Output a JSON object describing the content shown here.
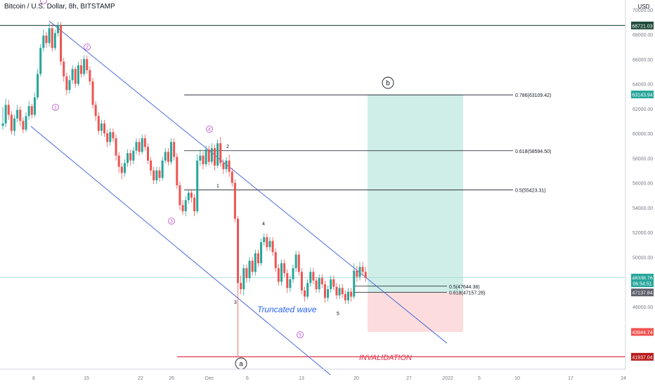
{
  "header": {
    "title": "Bitcoin / U.S. Dollar, 8h, BITSTAMP"
  },
  "price_axis": {
    "currency": "USD",
    "ticks": [
      "70000.00",
      "68000.00",
      "66000.00",
      "64000.00",
      "62000.00",
      "60000.00",
      "58000.00",
      "56000.00",
      "54000.00",
      "52000.00",
      "50000.00",
      "48000.00",
      "46000.00",
      "44000.00"
    ]
  },
  "time_axis": {
    "ticks": [
      "8",
      "15",
      "22",
      "26",
      "Dec",
      "6",
      "13",
      "20",
      "27",
      "2022",
      "5",
      "10",
      "17",
      "24"
    ]
  },
  "colors": {
    "up": "#26a69a",
    "down": "#ef5350",
    "channel": "#3a5bd9",
    "target_zone": "#cfeee7",
    "stop_zone": "#fcdcdc",
    "invalidation": "#e0364a",
    "wave_label": "#b64fc8",
    "dark_line": "#1e4a3a"
  },
  "chart_data": {
    "type": "candlestick",
    "symbol": "Bitcoin / U.S. Dollar",
    "interval": "8h",
    "exchange": "BITSTAMP",
    "ylim": [
      43000,
      70500
    ],
    "candles": [
      [
        60600,
        60800,
        62100,
        60300
      ],
      [
        60800,
        62300,
        62800,
        60500
      ],
      [
        62300,
        61500,
        62700,
        61100
      ],
      [
        61500,
        60200,
        61800,
        59900
      ],
      [
        60200,
        61200,
        61500,
        59800
      ],
      [
        61200,
        61900,
        62300,
        60900
      ],
      [
        61900,
        61000,
        62200,
        60600
      ],
      [
        61000,
        60300,
        61300,
        60000
      ],
      [
        60300,
        61400,
        61700,
        60100
      ],
      [
        61400,
        62200,
        62600,
        61100
      ],
      [
        62200,
        61500,
        62400,
        61200
      ],
      [
        61500,
        62900,
        63300,
        61300
      ],
      [
        62900,
        64800,
        65200,
        62700
      ],
      [
        64800,
        66900,
        67200,
        64600
      ],
      [
        66900,
        67900,
        68400,
        66600
      ],
      [
        67900,
        67300,
        68200,
        66900
      ],
      [
        67300,
        68500,
        68900,
        67000
      ],
      [
        68500,
        66900,
        68800,
        66600
      ],
      [
        66900,
        68100,
        68400,
        66700
      ],
      [
        68100,
        68700,
        69000,
        67800
      ],
      [
        68700,
        65800,
        69000,
        65500
      ],
      [
        65800,
        64600,
        66100,
        64200
      ],
      [
        64600,
        63500,
        64900,
        63100
      ],
      [
        63500,
        64300,
        64700,
        63200
      ],
      [
        64300,
        65200,
        65500,
        64000
      ],
      [
        65200,
        64000,
        65400,
        63700
      ],
      [
        64000,
        65500,
        65800,
        63800
      ],
      [
        65500,
        64800,
        66000,
        64500
      ],
      [
        64800,
        66000,
        66300,
        64600
      ],
      [
        66000,
        65100,
        66300,
        64800
      ],
      [
        65100,
        64200,
        65400,
        63900
      ],
      [
        64200,
        62300,
        64500,
        62000
      ],
      [
        62300,
        61400,
        62600,
        61000
      ],
      [
        61400,
        60200,
        61700,
        59900
      ],
      [
        60200,
        60800,
        61100,
        59800
      ],
      [
        60800,
        60000,
        61100,
        59700
      ],
      [
        60000,
        59300,
        60300,
        58900
      ],
      [
        59300,
        60100,
        60400,
        59000
      ],
      [
        60100,
        59600,
        60400,
        59300
      ],
      [
        59600,
        58200,
        59900,
        57800
      ],
      [
        58200,
        57300,
        58500,
        56800
      ],
      [
        57300,
        56800,
        57600,
        56300
      ],
      [
        56800,
        57600,
        57900,
        56500
      ],
      [
        57600,
        58400,
        58700,
        57300
      ],
      [
        58400,
        57800,
        58700,
        57400
      ],
      [
        57800,
        58600,
        58900,
        57500
      ],
      [
        58600,
        59300,
        59600,
        58300
      ],
      [
        59300,
        58500,
        59600,
        58200
      ],
      [
        58500,
        59600,
        59900,
        58300
      ],
      [
        59600,
        58900,
        59900,
        58600
      ],
      [
        58900,
        57800,
        59200,
        57500
      ],
      [
        57800,
        57000,
        58100,
        56600
      ],
      [
        57000,
        56200,
        57300,
        55900
      ],
      [
        56200,
        57000,
        57300,
        55900
      ],
      [
        57000,
        56400,
        57300,
        56100
      ],
      [
        56400,
        57800,
        58100,
        56200
      ],
      [
        57800,
        58500,
        58800,
        57600
      ],
      [
        58500,
        57700,
        58800,
        57400
      ],
      [
        57700,
        59300,
        59600,
        57500
      ],
      [
        59300,
        58100,
        59600,
        57800
      ],
      [
        58100,
        55800,
        58400,
        55500
      ],
      [
        55800,
        54200,
        56100,
        53800
      ],
      [
        54200,
        53700,
        54600,
        53400
      ],
      [
        53700,
        54600,
        54900,
        53300
      ],
      [
        54600,
        55200,
        55400,
        54300
      ],
      [
        55200,
        54800,
        55500,
        54400
      ],
      [
        54800,
        53700,
        55100,
        53300
      ],
      [
        53700,
        57800,
        58300,
        53500
      ],
      [
        57800,
        58200,
        58700,
        57400
      ],
      [
        58200,
        57500,
        58500,
        57100
      ],
      [
        57500,
        58700,
        59000,
        57300
      ],
      [
        58700,
        57700,
        59000,
        57400
      ],
      [
        57700,
        58800,
        59200,
        57500
      ],
      [
        58800,
        57400,
        59100,
        57000
      ],
      [
        57400,
        59200,
        59500,
        57200
      ],
      [
        59200,
        57600,
        59700,
        57300
      ],
      [
        57600,
        57100,
        57900,
        56700
      ],
      [
        57100,
        57800,
        58100,
        56800
      ],
      [
        57800,
        56900,
        58300,
        56500
      ],
      [
        56900,
        56000,
        57200,
        55700
      ],
      [
        56000,
        53100,
        56300,
        52800
      ],
      [
        53100,
        47900,
        53300,
        42000
      ],
      [
        47900,
        47400,
        48500,
        47000
      ],
      [
        47400,
        49100,
        49400,
        46900
      ],
      [
        49100,
        48300,
        49400,
        47900
      ],
      [
        48300,
        49700,
        50000,
        48000
      ],
      [
        49700,
        48800,
        50000,
        48500
      ],
      [
        48800,
        50300,
        50600,
        48500
      ],
      [
        50300,
        49500,
        50600,
        49200
      ],
      [
        49500,
        51200,
        51500,
        49300
      ],
      [
        51200,
        51600,
        51900,
        50900
      ],
      [
        51600,
        50800,
        51900,
        50500
      ],
      [
        50800,
        51300,
        51600,
        50500
      ],
      [
        51300,
        50400,
        51600,
        50100
      ],
      [
        50400,
        49100,
        50700,
        48800
      ],
      [
        49100,
        48000,
        49400,
        47700
      ],
      [
        48000,
        49500,
        49800,
        47700
      ],
      [
        49500,
        48700,
        49800,
        48400
      ],
      [
        48700,
        47500,
        49000,
        47100
      ],
      [
        47500,
        48200,
        48500,
        47200
      ],
      [
        48200,
        49100,
        49400,
        47900
      ],
      [
        49100,
        50200,
        50500,
        48800
      ],
      [
        50200,
        48800,
        50500,
        48500
      ],
      [
        48800,
        47300,
        49100,
        47000
      ],
      [
        47300,
        46800,
        47600,
        46400
      ],
      [
        46800,
        47900,
        48200,
        46600
      ],
      [
        47900,
        48800,
        49100,
        47600
      ],
      [
        48800,
        48100,
        49100,
        47800
      ],
      [
        48100,
        47400,
        48400,
        47100
      ],
      [
        47400,
        48300,
        48600,
        47100
      ],
      [
        48300,
        47800,
        48600,
        47500
      ],
      [
        47800,
        46700,
        48100,
        46300
      ],
      [
        46700,
        47400,
        47700,
        46400
      ],
      [
        47400,
        48200,
        48500,
        47100
      ],
      [
        48200,
        47600,
        48500,
        47300
      ],
      [
        47600,
        46900,
        47900,
        46600
      ],
      [
        46900,
        47500,
        47800,
        46600
      ],
      [
        47500,
        47000,
        47800,
        46700
      ],
      [
        47000,
        46500,
        47300,
        46200
      ],
      [
        46500,
        47200,
        47500,
        46200
      ],
      [
        47200,
        46800,
        47500,
        46400
      ],
      [
        46800,
        48900,
        49500,
        46600
      ],
      [
        48900,
        48400,
        49300,
        48000
      ],
      [
        48400,
        49200,
        49600,
        48100
      ],
      [
        49200,
        48800,
        49600,
        48500
      ],
      [
        48800,
        48300,
        49200,
        48000
      ]
    ],
    "levels": [
      {
        "label": "0.786(63109.42)",
        "price": 63109.42
      },
      {
        "label": "0.618(58594.50)",
        "price": 58594.5
      },
      {
        "label": "0.5(55423.31)",
        "price": 55423.31
      },
      {
        "label": "0.5(47644.38)",
        "price": 47644.38
      },
      {
        "label": "0.618(47157.28)",
        "price": 47157.28
      }
    ],
    "price_labels": [
      {
        "text": "68721.03",
        "price": 68721.03,
        "bg": "#1e4a3a"
      },
      {
        "text": "63143.94",
        "price": 63143.94,
        "bg": "#26a69a"
      },
      {
        "text": "48338.76",
        "price": 48338.76,
        "bg": "#26a69a"
      },
      {
        "text": "06:54:51",
        "price": 47880,
        "bg": "#26a69a"
      },
      {
        "text": "47137.84",
        "price": 47137.84,
        "bg": "#5d606b"
      },
      {
        "text": "43944.74",
        "price": 43944.74,
        "bg": "#ef5350"
      },
      {
        "text": "41937.04",
        "price": 41937.04,
        "bg": "#b71c1c"
      }
    ],
    "position": {
      "entry": 47137.84,
      "target": 63143.94,
      "stop": 43944.74
    },
    "horizontal_lines": [
      {
        "price": 68721.03,
        "kind": "dark"
      },
      {
        "price": 41937.04,
        "kind": "invalidation"
      },
      {
        "price": 48338.76,
        "kind": "current"
      }
    ],
    "annotations": {
      "waves_major": [
        "1",
        "2",
        "3",
        "4",
        "5"
      ],
      "waves_minor": [
        "2",
        "1",
        "3",
        "4",
        "5"
      ],
      "circle_labels": [
        "b",
        "a"
      ],
      "text_labels": [
        "Truncated wave",
        "INVALIDATION"
      ]
    }
  }
}
